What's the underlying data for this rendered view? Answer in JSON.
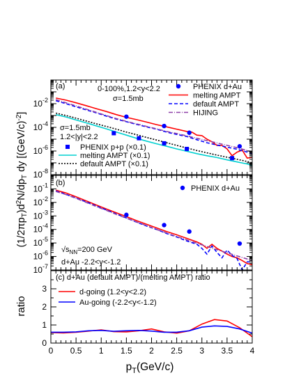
{
  "chart_data": [
    {
      "panel": "(a)",
      "type": "line",
      "log_y": true,
      "ylim": [
        1e-08,
        1
      ],
      "xlim": [
        0,
        4
      ],
      "y_ticks": [
        {
          "v": 1e-08,
          "exp": "-8"
        },
        {
          "v": 1e-06,
          "exp": "-6"
        },
        {
          "v": 0.0001,
          "exp": "-4"
        },
        {
          "v": 0.01,
          "exp": "-2"
        }
      ],
      "annotations": [
        "0-100%,1.2<y<2.2",
        "σ=1.5mb",
        "σ=1.5mb",
        "1.2<|y|<2.2"
      ],
      "legend_top": [
        {
          "label": "PHENIX d+Au",
          "kind": "marker-circle",
          "color": "#0000ff"
        },
        {
          "label": "melting AMPT",
          "kind": "solid",
          "color": "#ff0000"
        },
        {
          "label": "default AMPT",
          "kind": "dashed",
          "color": "#0000ff"
        },
        {
          "label": "HIJING",
          "kind": "dashdot",
          "color": "#8e3fa8"
        }
      ],
      "legend_bottom": [
        {
          "label": "PHENIX p+p (×0.1)",
          "kind": "marker-square",
          "color": "#0000ff"
        },
        {
          "label": "melting AMPT  (×0.1)",
          "kind": "solid",
          "color": "#00d0d0"
        },
        {
          "label": "default AMPT  (×0.1)",
          "kind": "dotted",
          "color": "#000000"
        }
      ],
      "series": [
        {
          "name": "melting AMPT",
          "style": "solid",
          "color": "#ff0000",
          "x": [
            0.1,
            0.3,
            0.5,
            0.7,
            0.9,
            1.1,
            1.3,
            1.5,
            1.7,
            1.9,
            2.1,
            2.3,
            2.5,
            2.7,
            2.8,
            2.9,
            3.0,
            3.1,
            3.2,
            3.3,
            3.4,
            3.5,
            3.6,
            3.7,
            3.8,
            3.9,
            4.0
          ],
          "y": [
            0.03,
            0.02,
            0.012,
            0.0068,
            0.0038,
            0.0022,
            0.0012,
            0.0007,
            0.00045,
            0.00028,
            0.00017,
            0.00011,
            7e-05,
            4.5e-05,
            4e-05,
            2.2e-05,
            2e-05,
            1e-05,
            6e-06,
            3e-06,
            3e-06,
            1.5e-06,
            4e-07,
            8e-07,
            1.2e-06,
            2.5e-07,
            3e-07
          ]
        },
        {
          "name": "default AMPT",
          "style": "dashed",
          "color": "#0000ff",
          "x": [
            0.1,
            0.3,
            0.5,
            0.7,
            0.9,
            1.1,
            1.3,
            1.5,
            1.7,
            1.9,
            2.1,
            2.3,
            2.5,
            2.7,
            2.9,
            3.1,
            3.3,
            3.5,
            3.7,
            3.9,
            4.0
          ],
          "y": [
            0.018,
            0.01,
            0.0055,
            0.003,
            0.0017,
            0.0009,
            0.0005,
            0.0003,
            0.00018,
            0.00011,
            7e-05,
            4e-05,
            2.5e-05,
            1.7e-05,
            9e-06,
            5e-06,
            3.2e-06,
            2.1e-06,
            1.4e-06,
            8e-07,
            6e-07
          ]
        },
        {
          "name": "HIJING",
          "style": "dashdot",
          "color": "#8e3fa8",
          "x": [
            0.1,
            0.3,
            0.5,
            0.7,
            0.9,
            1.1,
            1.3,
            1.5,
            1.7,
            1.9,
            2.1,
            2.3,
            2.5,
            2.7,
            2.9,
            3.1,
            3.3,
            3.5,
            3.7,
            3.9,
            4.0
          ],
          "y": [
            0.022,
            0.012,
            0.0065,
            0.0035,
            0.0019,
            0.001,
            0.00055,
            0.00032,
            0.0002,
            0.00012,
            7.5e-05,
            4.5e-05,
            3e-05,
            1.9e-05,
            1.2e-05,
            7.5e-06,
            4.8e-06,
            3e-06,
            1.9e-06,
            1.1e-06,
            8e-07
          ]
        },
        {
          "name": "melting AMPT  (×0.1)",
          "style": "solid",
          "color": "#00d0d0",
          "x": [
            0.1,
            0.3,
            0.5,
            0.7,
            0.9,
            1.1,
            1.3,
            1.5,
            1.7,
            1.9,
            2.1,
            2.3,
            2.5,
            2.7,
            2.9,
            3.1,
            3.3,
            3.5,
            3.7,
            3.9,
            4.0
          ],
          "y": [
            0.0012,
            0.00075,
            0.00042,
            0.00024,
            0.000135,
            7.5e-05,
            4e-05,
            2.2e-05,
            1.2e-05,
            6.8e-06,
            4.1e-06,
            2.5e-06,
            1.5e-06,
            9.5e-07,
            6e-07,
            4e-07,
            2.8e-07,
            1.8e-07,
            1.2e-07,
            8e-08,
            6e-08
          ]
        },
        {
          "name": "default AMPT  (×0.1)",
          "style": "dotted",
          "color": "#000000",
          "x": [
            0.1,
            0.3,
            0.5,
            0.7,
            0.9,
            1.1,
            1.3,
            1.5,
            1.7,
            1.9,
            2.1,
            2.3,
            2.5,
            2.7,
            2.9,
            3.1,
            3.3,
            3.5,
            3.7,
            3.9,
            4.0
          ],
          "y": [
            0.0016,
            0.001,
            0.0006,
            0.00035,
            0.0002,
            0.00012,
            7e-05,
            4e-05,
            2.4e-05,
            1.4e-05,
            8.5e-06,
            5e-06,
            3e-06,
            1.8e-06,
            1.1e-06,
            7e-07,
            4.5e-07,
            3e-07,
            2e-07,
            1.3e-07,
            1e-07
          ]
        }
      ],
      "points": [
        {
          "name": "PHENIX d+Au",
          "marker": "circle",
          "color": "#0000ff",
          "x": [
            1.5,
            2.25,
            2.75,
            3.75
          ],
          "y": [
            0.0008,
            0.00013,
            3.5e-05,
            2.5e-06
          ]
        },
        {
          "name": "PHENIX p+p (×0.1)",
          "marker": "square",
          "color": "#0000ff",
          "x": [
            1.25,
            1.75,
            2.25,
            2.7,
            3.6
          ],
          "y": [
            3.2e-05,
            1.2e-05,
            4.5e-06,
            1.5e-06,
            2.5e-07
          ]
        }
      ]
    },
    {
      "panel": "(b)",
      "type": "line",
      "log_y": true,
      "ylim": [
        1e-07,
        1
      ],
      "xlim": [
        0,
        4
      ],
      "y_ticks": [
        {
          "v": 1e-07,
          "exp": "-7"
        },
        {
          "v": 1e-06,
          "exp": "-6"
        },
        {
          "v": 1e-05,
          "exp": "-5"
        },
        {
          "v": 0.0001,
          "exp": "-4"
        },
        {
          "v": 0.001,
          "exp": "-3"
        },
        {
          "v": 0.01,
          "exp": "-2"
        },
        {
          "v": 0.1,
          "exp": "-1"
        }
      ],
      "annotations": [
        "d+Au -2.2<y<-1.2"
      ],
      "legend_top": [
        {
          "label": "PHENIX d+Au",
          "kind": "marker-circle",
          "color": "#0000ff"
        }
      ],
      "series": [
        {
          "name": "melting AMPT",
          "style": "solid",
          "color": "#ff0000",
          "x": [
            0.1,
            0.3,
            0.5,
            0.7,
            0.9,
            1.1,
            1.3,
            1.5,
            1.7,
            1.9,
            2.1,
            2.3,
            2.5,
            2.7,
            2.9,
            3.0,
            3.1,
            3.2,
            3.3,
            3.4,
            3.5,
            3.6,
            3.7,
            3.8,
            3.9,
            4.0
          ],
          "y": [
            0.08,
            0.05,
            0.026,
            0.013,
            0.0065,
            0.0033,
            0.0017,
            0.0009,
            0.00045,
            0.00024,
            0.00013,
            7e-05,
            4e-05,
            2.2e-05,
            1.2e-05,
            8e-06,
            4e-06,
            8e-06,
            4e-06,
            2.5e-06,
            1.5e-06,
            1e-06,
            8e-07,
            5e-07,
            3e-07,
            2.5e-07
          ]
        },
        {
          "name": "default AMPT",
          "style": "dashed",
          "color": "#0000ff",
          "x": [
            0.1,
            0.3,
            0.5,
            0.7,
            0.9,
            1.1,
            1.3,
            1.5,
            1.7,
            1.9,
            2.1,
            2.3,
            2.5,
            2.7,
            2.9,
            3.0,
            3.1,
            3.2,
            3.3,
            3.4,
            3.5,
            3.6,
            3.7,
            3.8,
            3.9,
            4.0
          ],
          "y": [
            0.07,
            0.04,
            0.021,
            0.011,
            0.0055,
            0.0028,
            0.0014,
            0.0007,
            0.00035,
            0.00018,
            0.0001,
            5e-05,
            2.8e-05,
            1.4e-05,
            8e-06,
            4e-06,
            1.5e-06,
            6e-06,
            2e-06,
            8e-07,
            3e-06,
            1.2e-06,
            7e-07,
            1e-07,
            4e-07,
            4e-07
          ]
        },
        {
          "name": "HIJING",
          "style": "dashdot",
          "color": "#8e3fa8",
          "x": [
            0.1,
            0.3,
            0.5,
            0.7,
            0.9,
            1.1,
            1.3,
            1.5,
            1.7,
            1.9,
            2.1,
            2.3,
            2.5,
            2.7,
            2.9,
            3.1,
            3.3,
            3.5,
            3.7,
            3.9,
            4.0
          ],
          "y": [
            0.065,
            0.038,
            0.02,
            0.01,
            0.005,
            0.0026,
            0.0013,
            0.00068,
            0.00036,
            0.00019,
            0.0001,
            5.5e-05,
            3e-05,
            1.7e-05,
            9.5e-06,
            5.5e-06,
            3.2e-06,
            1.9e-06,
            1.1e-06,
            6.5e-07,
            5e-07
          ]
        }
      ],
      "points": [
        {
          "name": "PHENIX d+Au",
          "marker": "circle",
          "color": "#0000ff",
          "x": [
            1.5,
            2.25,
            2.75,
            3.75
          ],
          "y": [
            0.0012,
            0.00021,
            7e-05,
            9e-06
          ]
        }
      ]
    },
    {
      "panel": "(c)",
      "type": "line",
      "log_y": false,
      "ylim": [
        0,
        4
      ],
      "xlim": [
        0,
        4
      ],
      "y_ticks": [
        {
          "v": 0,
          "t": "0"
        },
        {
          "v": 1,
          "t": "1"
        },
        {
          "v": 2,
          "t": "2"
        },
        {
          "v": 3,
          "t": "3"
        }
      ],
      "x_ticks": [
        "0",
        "0.5",
        "1",
        "1.5",
        "2",
        "2.5",
        "3",
        "3.5",
        "4"
      ],
      "legend_title": "d+Au (default AMPT)/(melting AMPT) ratio",
      "legend_items": [
        {
          "label": "d-going  (1.2<y<2.2)",
          "color": "#ff0000"
        },
        {
          "label": "Au-going (-2.2<y<-1.2)",
          "color": "#0000ff"
        }
      ],
      "series": [
        {
          "name": "d-going  (1.2<y<2.2)",
          "style": "solid",
          "color": "#ff0000",
          "x": [
            0,
            0.25,
            0.5,
            0.75,
            1.0,
            1.25,
            1.5,
            1.75,
            2.0,
            2.25,
            2.5,
            2.75,
            3.0,
            3.25,
            3.5,
            3.75,
            4.0
          ],
          "y": [
            0.58,
            0.56,
            0.6,
            0.66,
            0.73,
            0.63,
            0.62,
            0.68,
            0.78,
            0.62,
            0.55,
            0.68,
            1.05,
            1.3,
            1.22,
            0.85,
            0.35
          ]
        },
        {
          "name": "Au-going (-2.2<y<-1.2)",
          "style": "solid",
          "color": "#0000ff",
          "x": [
            0,
            0.25,
            0.5,
            0.75,
            1.0,
            1.25,
            1.5,
            1.75,
            2.0,
            2.25,
            2.5,
            2.75,
            3.0,
            3.25,
            3.5,
            3.75,
            4.0
          ],
          "y": [
            0.6,
            0.6,
            0.62,
            0.68,
            0.7,
            0.65,
            0.68,
            0.7,
            0.66,
            0.6,
            0.6,
            0.68,
            0.88,
            0.95,
            0.92,
            0.78,
            0.55
          ]
        }
      ]
    }
  ],
  "ylabel_main": "(1/2πp_T)d²N/dp_T dy [(GeV/c)^-2]",
  "ylabel_ratio": "ratio",
  "xlabel": "p_T(GeV/c)",
  "energy_label": "√s_NN=200 GeV"
}
